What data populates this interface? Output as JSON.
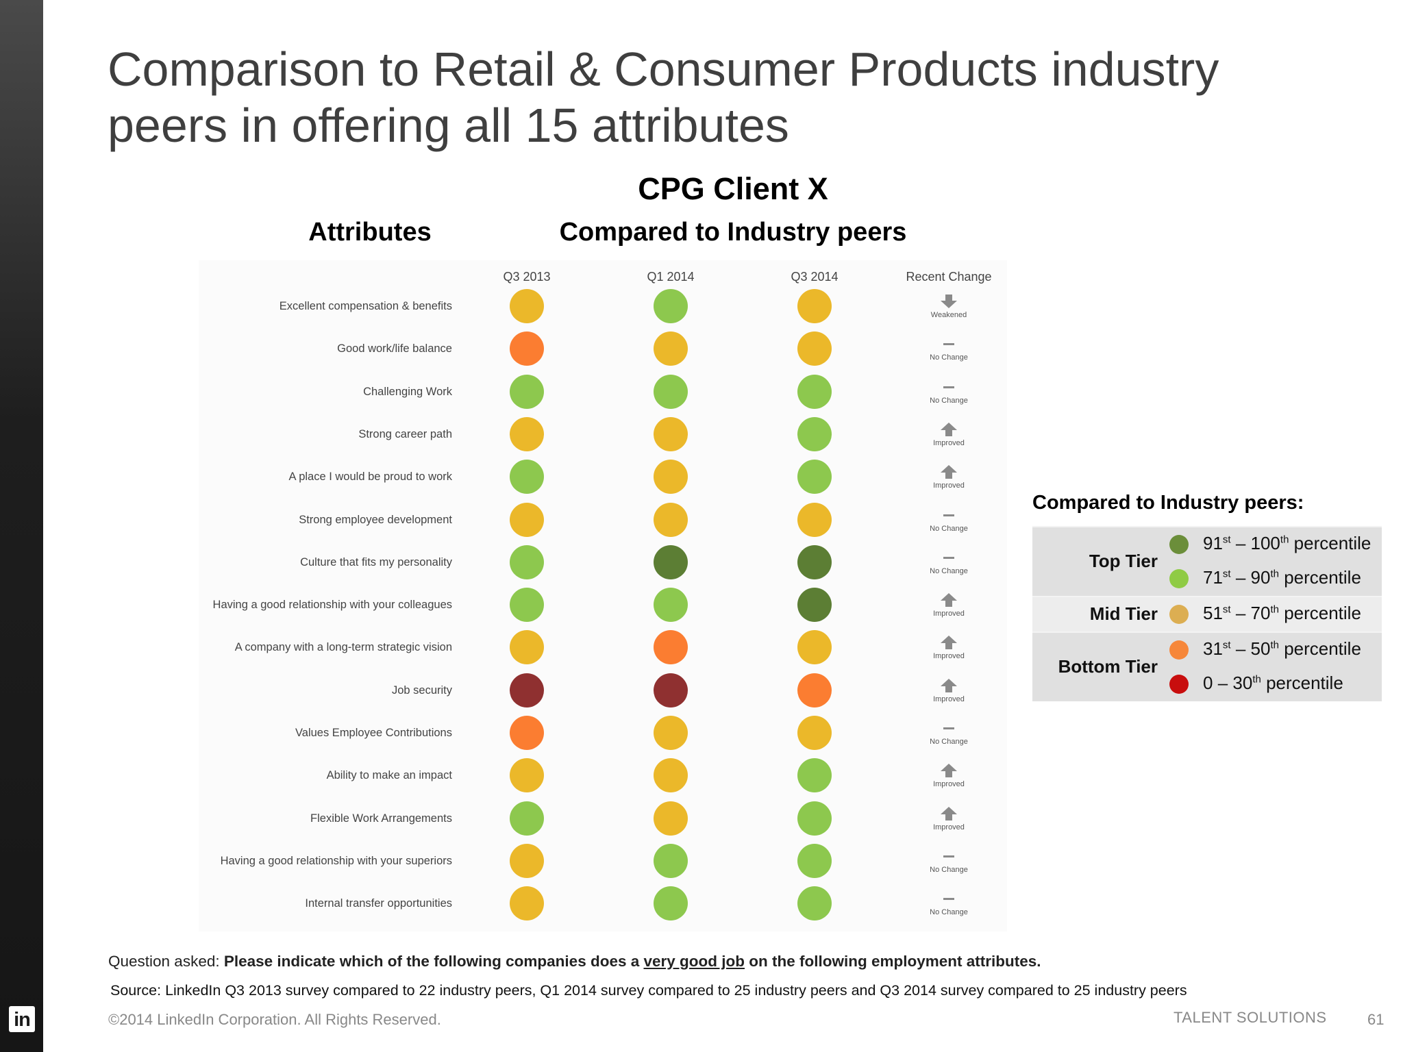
{
  "title": "Comparison to Retail & Consumer Products industry peers in offering all 15 attributes",
  "client": "CPG Client X",
  "attributes_heading": "Attributes",
  "compared_heading": "Compared to Industry peers",
  "colors": {
    "dark_green": "#5c7e34",
    "light_green": "#8dc84e",
    "yellow": "#ebb82a",
    "orange": "#fb7d31",
    "dark_red": "#8f3030",
    "legend_dark_green": "#6b8e3a",
    "legend_light_green": "#8fcb45",
    "legend_yellow": "#dcae52",
    "legend_orange": "#f6873a",
    "legend_red": "#c80e0e"
  },
  "chart_data": {
    "type": "table",
    "columns": [
      "Q3 2013",
      "Q1 2014",
      "Q3 2014",
      "Recent Change"
    ],
    "rows": [
      {
        "label": "Excellent compensation & benefits",
        "ratings": [
          "yellow",
          "light_green",
          "yellow"
        ],
        "change": "Weakened",
        "change_icon": "arrow-down"
      },
      {
        "label": "Good work/life balance",
        "ratings": [
          "orange",
          "yellow",
          "yellow"
        ],
        "change": "No Change",
        "change_icon": "dash"
      },
      {
        "label": "Challenging Work",
        "ratings": [
          "light_green",
          "light_green",
          "light_green"
        ],
        "change": "No Change",
        "change_icon": "dash"
      },
      {
        "label": "Strong career path",
        "ratings": [
          "yellow",
          "yellow",
          "light_green"
        ],
        "change": "Improved",
        "change_icon": "arrow-up"
      },
      {
        "label": "A place I would be proud to work",
        "ratings": [
          "light_green",
          "yellow",
          "light_green"
        ],
        "change": "Improved",
        "change_icon": "arrow-up"
      },
      {
        "label": "Strong employee development",
        "ratings": [
          "yellow",
          "yellow",
          "yellow"
        ],
        "change": "No Change",
        "change_icon": "dash"
      },
      {
        "label": "Culture that fits my personality",
        "ratings": [
          "light_green",
          "dark_green",
          "dark_green"
        ],
        "change": "No Change",
        "change_icon": "dash"
      },
      {
        "label": "Having a good relationship with your colleagues",
        "ratings": [
          "light_green",
          "light_green",
          "dark_green"
        ],
        "change": "Improved",
        "change_icon": "arrow-up"
      },
      {
        "label": "A company with a long-term strategic vision",
        "ratings": [
          "yellow",
          "orange",
          "yellow"
        ],
        "change": "Improved",
        "change_icon": "arrow-up"
      },
      {
        "label": "Job security",
        "ratings": [
          "dark_red",
          "dark_red",
          "orange"
        ],
        "change": "Improved",
        "change_icon": "arrow-up"
      },
      {
        "label": "Values Employee Contributions",
        "ratings": [
          "orange",
          "yellow",
          "yellow"
        ],
        "change": "No Change",
        "change_icon": "dash"
      },
      {
        "label": "Ability to make an impact",
        "ratings": [
          "yellow",
          "yellow",
          "light_green"
        ],
        "change": "Improved",
        "change_icon": "arrow-up"
      },
      {
        "label": "Flexible Work Arrangements",
        "ratings": [
          "light_green",
          "yellow",
          "light_green"
        ],
        "change": "Improved",
        "change_icon": "arrow-up"
      },
      {
        "label": "Having a good relationship with your superiors",
        "ratings": [
          "yellow",
          "light_green",
          "light_green"
        ],
        "change": "No Change",
        "change_icon": "dash"
      },
      {
        "label": "Internal transfer opportunities",
        "ratings": [
          "yellow",
          "light_green",
          "light_green"
        ],
        "change": "No Change",
        "change_icon": "dash"
      }
    ]
  },
  "legend": {
    "title": "Compared to Industry peers:",
    "tiers": [
      {
        "name": "Top Tier",
        "items": [
          {
            "color": "legend_dark_green",
            "num1": "91",
            "sup1": "st",
            "num2": "100",
            "sup2": "th",
            "suffix": "percentile"
          },
          {
            "color": "legend_light_green",
            "num1": "71",
            "sup1": "st",
            "num2": "90",
            "sup2": "th",
            "suffix": "percentile"
          }
        ]
      },
      {
        "name": "Mid Tier",
        "items": [
          {
            "color": "legend_yellow",
            "num1": "51",
            "sup1": "st",
            "num2": "70",
            "sup2": "th",
            "suffix": "percentile"
          }
        ]
      },
      {
        "name": "Bottom Tier",
        "items": [
          {
            "color": "legend_orange",
            "num1": "31",
            "sup1": "st",
            "num2": "50",
            "sup2": "th",
            "suffix": "percentile"
          },
          {
            "color": "legend_red",
            "num1": "0",
            "sup1": "",
            "num2": "30",
            "sup2": "th",
            "suffix": "percentile"
          }
        ]
      }
    ]
  },
  "footer": {
    "question_prefix": "Question asked: ",
    "question_bold_1": "Please indicate which of the following companies does a ",
    "question_underlined": "very good job",
    "question_bold_2": " on the following employment attributes.",
    "source": "Source: LinkedIn Q3 2013 survey compared to 22 industry peers, Q1 2014 survey compared to 25 industry peers and Q3 2014 survey compared to 25 industry peers",
    "copyright": "©2014 LinkedIn Corporation. All Rights Reserved.",
    "brand": "TALENT SOLUTIONS",
    "page_number": "61",
    "logo": "in"
  }
}
